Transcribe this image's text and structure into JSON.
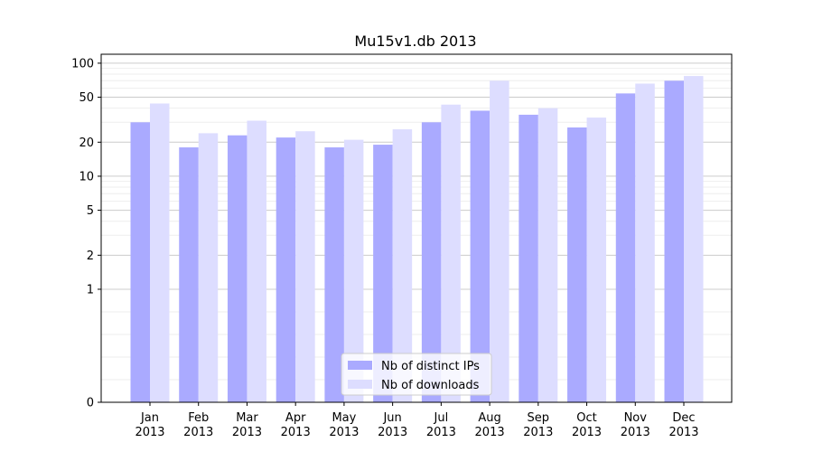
{
  "chart_data": {
    "type": "bar",
    "title": "Mu15v1.db 2013",
    "xlabel": "",
    "ylabel": "",
    "categories": [
      [
        "Jan",
        "2013"
      ],
      [
        "Feb",
        "2013"
      ],
      [
        "Mar",
        "2013"
      ],
      [
        "Apr",
        "2013"
      ],
      [
        "May",
        "2013"
      ],
      [
        "Jun",
        "2013"
      ],
      [
        "Jul",
        "2013"
      ],
      [
        "Aug",
        "2013"
      ],
      [
        "Sep",
        "2013"
      ],
      [
        "Oct",
        "2013"
      ],
      [
        "Nov",
        "2013"
      ],
      [
        "Dec",
        "2013"
      ]
    ],
    "y_scale": "symlog",
    "ylim": [
      0,
      120
    ],
    "y_ticks": [
      0,
      1,
      2,
      5,
      10,
      20,
      50,
      100
    ],
    "grid": true,
    "legend_position": "bottom-center",
    "series": [
      {
        "name": "Nb of distinct IPs",
        "color": "#aaaaff",
        "values": [
          30,
          18,
          23,
          22,
          18,
          19,
          30,
          38,
          35,
          27,
          54,
          70
        ]
      },
      {
        "name": "Nb of downloads",
        "color": "#ddddff",
        "values": [
          44,
          24,
          31,
          25,
          21,
          26,
          43,
          70,
          40,
          33,
          66,
          77
        ]
      }
    ]
  }
}
